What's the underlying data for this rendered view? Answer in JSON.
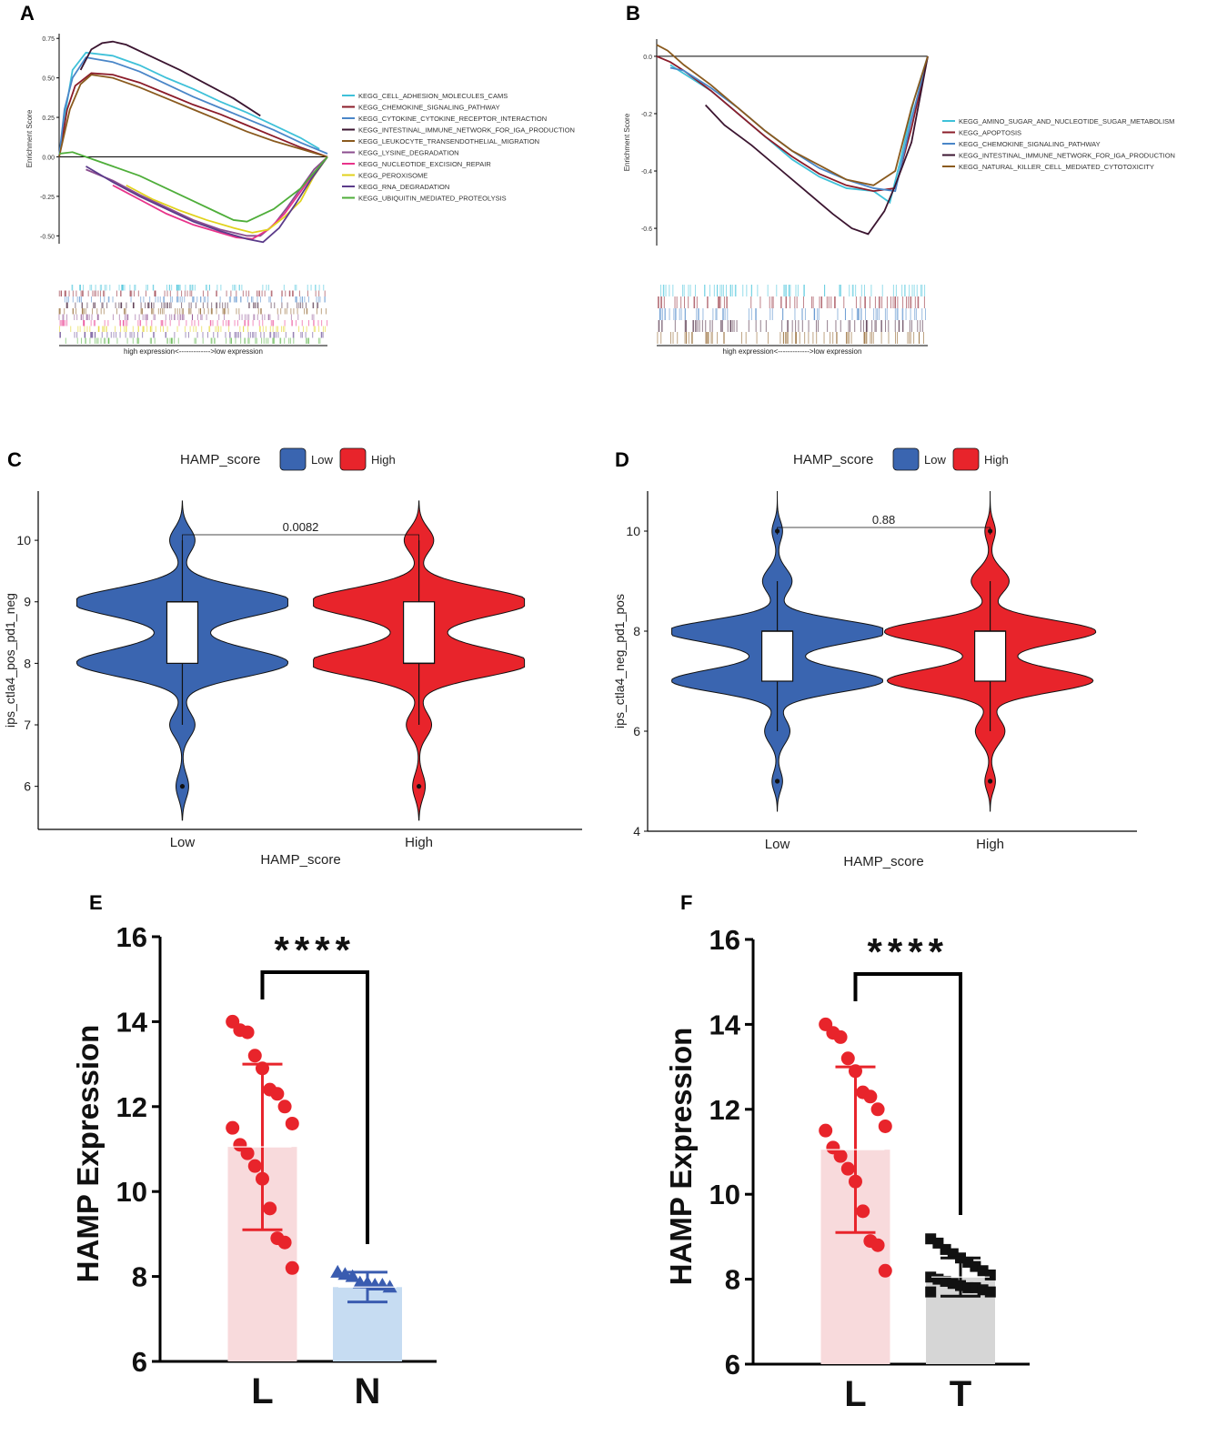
{
  "figure": {
    "panels": [
      "A",
      "B",
      "C",
      "D",
      "E",
      "F"
    ]
  },
  "chart_data": [
    {
      "panel": "A",
      "type": "line",
      "ylabel": "Enrichment Score",
      "yticks": [
        "0.75",
        "0.50",
        "0.25",
        "0.00",
        "-0.25",
        "-0.50"
      ],
      "ytick_values": [
        0.75,
        0.5,
        0.25,
        0.0,
        -0.25,
        -0.5
      ],
      "ylim": [
        -0.55,
        0.78
      ],
      "xlim": [
        0,
        100
      ],
      "rank_label": "high expression<------------->low expression",
      "series": [
        {
          "name": "KEGG_CELL_ADHESION_MOLECULES_CAMS",
          "color": "#3fc1d9",
          "x": [
            0,
            2,
            5,
            10,
            20,
            30,
            40,
            50,
            60,
            70,
            80,
            90,
            97
          ],
          "y": [
            0.0,
            0.25,
            0.55,
            0.66,
            0.64,
            0.58,
            0.5,
            0.43,
            0.35,
            0.28,
            0.2,
            0.12,
            0.05
          ]
        },
        {
          "name": "KEGG_CHEMOKINE_SIGNALING_PATHWAY",
          "color": "#8b1c2a",
          "x": [
            0,
            3,
            6,
            12,
            20,
            30,
            40,
            50,
            60,
            70,
            80,
            90,
            100
          ],
          "y": [
            0.0,
            0.3,
            0.45,
            0.53,
            0.52,
            0.47,
            0.4,
            0.33,
            0.27,
            0.2,
            0.13,
            0.06,
            0.0
          ]
        },
        {
          "name": "KEGG_CYTOKINE_CYTOKINE_RECEPTOR_INTERACTION",
          "color": "#4a86c8",
          "x": [
            0,
            2,
            5,
            10,
            20,
            30,
            40,
            50,
            60,
            70,
            80,
            90,
            100
          ],
          "y": [
            0.0,
            0.3,
            0.5,
            0.63,
            0.6,
            0.54,
            0.46,
            0.38,
            0.31,
            0.24,
            0.17,
            0.09,
            0.02
          ]
        },
        {
          "name": "KEGG_INTESTINAL_IMMUNE_NETWORK_FOR_IGA_PRODUCTION",
          "color": "#3b1530",
          "x": [
            8,
            12,
            16,
            20,
            25,
            35,
            45,
            55,
            65,
            75
          ],
          "y": [
            0.55,
            0.68,
            0.72,
            0.73,
            0.71,
            0.63,
            0.55,
            0.46,
            0.37,
            0.26
          ]
        },
        {
          "name": "KEGG_LEUKOCYTE_TRANSENDOTHELIAL_MIGRATION",
          "color": "#8a5a1e",
          "x": [
            0,
            4,
            8,
            12,
            20,
            30,
            40,
            50,
            60,
            70,
            80,
            90,
            100
          ],
          "y": [
            0.0,
            0.3,
            0.46,
            0.52,
            0.5,
            0.44,
            0.37,
            0.3,
            0.23,
            0.16,
            0.1,
            0.05,
            0.0
          ]
        },
        {
          "name": "KEGG_LYSINE_DEGRADATION",
          "color": "#8b4d8f",
          "x": [
            10,
            20,
            30,
            40,
            50,
            60,
            70,
            75,
            80,
            85,
            90,
            95,
            100
          ],
          "y": [
            -0.08,
            -0.15,
            -0.24,
            -0.32,
            -0.4,
            -0.46,
            -0.5,
            -0.5,
            -0.43,
            -0.32,
            -0.2,
            -0.08,
            0.0
          ]
        },
        {
          "name": "KEGG_NUCLEOTIDE_EXCISION_REPAIR",
          "color": "#e8338a",
          "x": [
            20,
            30,
            40,
            50,
            60,
            66,
            72,
            78,
            84,
            90,
            95,
            100
          ],
          "y": [
            -0.18,
            -0.27,
            -0.36,
            -0.43,
            -0.48,
            -0.51,
            -0.52,
            -0.46,
            -0.36,
            -0.22,
            -0.1,
            0.0
          ]
        },
        {
          "name": "KEGG_PEROXISOME",
          "color": "#e1d21c",
          "x": [
            25,
            35,
            45,
            55,
            65,
            72,
            78,
            84,
            90,
            95,
            100
          ],
          "y": [
            -0.18,
            -0.27,
            -0.34,
            -0.4,
            -0.45,
            -0.48,
            -0.46,
            -0.38,
            -0.28,
            -0.12,
            0.0
          ]
        },
        {
          "name": "KEGG_RNA_DEGRADATION",
          "color": "#5b3b8a",
          "x": [
            10,
            20,
            30,
            40,
            50,
            60,
            70,
            76,
            82,
            88,
            94,
            100
          ],
          "y": [
            -0.06,
            -0.16,
            -0.25,
            -0.33,
            -0.41,
            -0.47,
            -0.52,
            -0.54,
            -0.45,
            -0.3,
            -0.14,
            0.0
          ]
        },
        {
          "name": "KEGG_UBIQUITIN_MEDIATED_PROTEOLYSIS",
          "color": "#4fae3a",
          "x": [
            0,
            5,
            10,
            20,
            30,
            40,
            50,
            60,
            65,
            70,
            80,
            90,
            100
          ],
          "y": [
            0.02,
            0.03,
            0.0,
            -0.06,
            -0.12,
            -0.2,
            -0.28,
            -0.36,
            -0.4,
            -0.41,
            -0.33,
            -0.2,
            0.0
          ]
        }
      ]
    },
    {
      "panel": "B",
      "type": "line",
      "ylabel": "Enrichment Score",
      "yticks": [
        "0.0",
        "-0.2",
        "-0.4",
        "-0.6"
      ],
      "ytick_values": [
        0.0,
        -0.2,
        -0.4,
        -0.6
      ],
      "ylim": [
        -0.66,
        0.06
      ],
      "xlim": [
        0,
        100
      ],
      "rank_label": "high expression<------------->low expression",
      "series": [
        {
          "name": "KEGG_AMINO_SUGAR_AND_NUCLEOTIDE_SUGAR_METABOLISM",
          "color": "#3fc1d9",
          "x": [
            5,
            10,
            20,
            30,
            40,
            50,
            60,
            70,
            80,
            86,
            90,
            95,
            100
          ],
          "y": [
            -0.03,
            -0.06,
            -0.12,
            -0.2,
            -0.28,
            -0.36,
            -0.42,
            -0.46,
            -0.47,
            -0.51,
            -0.36,
            -0.15,
            0.0
          ]
        },
        {
          "name": "KEGG_APOPTOSIS",
          "color": "#8b1c2a",
          "x": [
            0,
            5,
            10,
            20,
            30,
            40,
            50,
            60,
            70,
            80,
            88,
            94,
            100
          ],
          "y": [
            0.0,
            -0.02,
            -0.05,
            -0.12,
            -0.2,
            -0.28,
            -0.35,
            -0.41,
            -0.45,
            -0.47,
            -0.46,
            -0.25,
            0.0
          ]
        },
        {
          "name": "KEGG_CHEMOKINE_SIGNALING_PATHWAY",
          "color": "#4a86c8",
          "x": [
            5,
            10,
            20,
            30,
            40,
            50,
            60,
            70,
            80,
            88,
            94,
            100
          ],
          "y": [
            -0.04,
            -0.05,
            -0.11,
            -0.18,
            -0.26,
            -0.33,
            -0.39,
            -0.43,
            -0.46,
            -0.47,
            -0.22,
            0.0
          ]
        },
        {
          "name": "KEGG_INTESTINAL_IMMUNE_NETWORK_FOR_IGA_PRODUCTION",
          "color": "#3b1530",
          "x": [
            18,
            25,
            35,
            45,
            55,
            65,
            72,
            78,
            84,
            88,
            94,
            100
          ],
          "y": [
            -0.17,
            -0.24,
            -0.31,
            -0.39,
            -0.47,
            -0.55,
            -0.6,
            -0.62,
            -0.54,
            -0.45,
            -0.3,
            0.0
          ]
        },
        {
          "name": "KEGG_NATURAL_KILLER_CELL_MEDIATED_CYTOTOXICITY",
          "color": "#8a5a1e",
          "x": [
            0,
            4,
            10,
            20,
            30,
            40,
            50,
            60,
            70,
            80,
            88,
            94,
            100
          ],
          "y": [
            0.04,
            0.02,
            -0.03,
            -0.1,
            -0.18,
            -0.26,
            -0.33,
            -0.38,
            -0.43,
            -0.45,
            -0.4,
            -0.18,
            0.0
          ]
        }
      ]
    },
    {
      "panel": "C",
      "type": "violin",
      "legend_title": "HAMP_score",
      "categories": [
        "Low",
        "High"
      ],
      "colors": [
        "#3a65b0",
        "#e8242b"
      ],
      "ylabel": "ips_ctla4_pos_pd1_neg",
      "xlabel": "HAMP_score",
      "ylim": [
        5.3,
        10.8
      ],
      "yticks": [
        6,
        7,
        8,
        9,
        10
      ],
      "pvalue": "0.0082",
      "box": {
        "q1": 8,
        "median": 9,
        "q3": 9,
        "whisker_low": 7,
        "whisker_high": 10
      },
      "box_high": {
        "q1": 8,
        "median": 8,
        "q3": 9,
        "whisker_low": 7,
        "whisker_high": 10
      },
      "outliers": [
        6
      ]
    },
    {
      "panel": "D",
      "type": "violin",
      "legend_title": "HAMP_score",
      "categories": [
        "Low",
        "High"
      ],
      "colors": [
        "#3a65b0",
        "#e8242b"
      ],
      "ylabel": "ips_ctla4_neg_pd1_pos",
      "xlabel": "HAMP_score",
      "ylim": [
        4,
        10.8
      ],
      "yticks": [
        4,
        6,
        8,
        10
      ],
      "pvalue": "0.88",
      "box": {
        "q1": 7,
        "median": 8,
        "q3": 8,
        "whisker_low": 6,
        "whisker_high": 9
      },
      "box_high": {
        "q1": 7,
        "median": 8,
        "q3": 8,
        "whisker_low": 6,
        "whisker_high": 9
      },
      "outliers_low": [
        5,
        10
      ],
      "outliers_high": [
        5,
        10
      ]
    },
    {
      "panel": "E",
      "type": "bar",
      "ylabel": "HAMP Expression",
      "categories": [
        "L",
        "N"
      ],
      "bar_colors": [
        "#f8dadc",
        "#c6dcf2"
      ],
      "point_colors": [
        "#e8242b",
        "#3a5cb0"
      ],
      "means": [
        11.05,
        7.75
      ],
      "sd": [
        1.95,
        0.35
      ],
      "ylim": [
        6,
        16
      ],
      "yticks": [
        6,
        8,
        10,
        12,
        14,
        16
      ],
      "significance": "****",
      "points_L": [
        14.0,
        13.8,
        13.75,
        13.2,
        12.9,
        12.4,
        12.3,
        12.0,
        11.6,
        11.5,
        11.1,
        10.9,
        10.6,
        10.3,
        9.6,
        8.9,
        8.8,
        8.2
      ],
      "points_N": [
        8.1,
        8.05,
        8.0,
        7.85,
        7.85,
        7.8,
        7.8,
        7.75
      ]
    },
    {
      "panel": "F",
      "type": "bar",
      "ylabel": "HAMP Expression",
      "categories": [
        "L",
        "T"
      ],
      "bar_colors": [
        "#f8dadc",
        "#d6d6d6"
      ],
      "point_colors": [
        "#e8242b",
        "#111111"
      ],
      "means": [
        11.05,
        8.05
      ],
      "sd": [
        1.95,
        0.45
      ],
      "ylim": [
        6,
        16
      ],
      "yticks": [
        6,
        8,
        10,
        12,
        14,
        16
      ],
      "significance": "****",
      "points_L": [
        14.0,
        13.8,
        13.7,
        13.2,
        12.9,
        12.4,
        12.3,
        12.0,
        11.6,
        11.5,
        11.1,
        10.9,
        10.6,
        10.3,
        9.6,
        8.9,
        8.8,
        8.2
      ],
      "points_T": [
        8.95,
        8.85,
        8.7,
        8.6,
        8.5,
        8.4,
        8.3,
        8.2,
        8.1,
        8.05,
        8.0,
        7.95,
        7.9,
        7.85,
        7.8,
        7.8,
        7.75,
        7.7,
        7.7
      ]
    }
  ]
}
